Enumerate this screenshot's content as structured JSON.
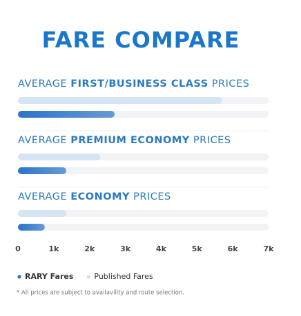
{
  "chart_data": {
    "type": "grouped-hbar",
    "title": "FARE COMPARE",
    "label_prefix": "AVERAGE",
    "label_suffix": "PRICES",
    "categories": [
      "FIRST/BUSINESS CLASS",
      "PREMIUM ECONOMY",
      "ECONOMY"
    ],
    "series": [
      {
        "name": "RARY Fares",
        "color": "#2b74c9",
        "values": [
          2700,
          1350,
          750
        ]
      },
      {
        "name": "Published Fares",
        "color": "#d5e5f3",
        "values": [
          5700,
          2300,
          1350
        ]
      }
    ],
    "xlim": [
      0,
      7000
    ],
    "xticks": [
      0,
      {
        "value": 1000,
        "label": "1k"
      },
      {
        "value": 2000,
        "label": "2k"
      },
      {
        "value": 3000,
        "label": "3k"
      },
      {
        "value": 4000,
        "label": "4k"
      },
      {
        "value": 5000,
        "label": "5k"
      },
      {
        "value": 6000,
        "label": "6k"
      },
      {
        "value": 7000,
        "label": "7k"
      }
    ],
    "note": "* All prices are subject to availavility and route selection."
  }
}
